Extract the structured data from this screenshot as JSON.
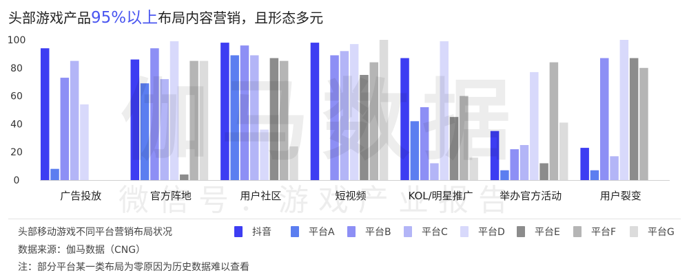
{
  "title": {
    "prefix": "头部游戏产品",
    "highlight": "95%以上",
    "suffix": "布局内容营销，且形态多元"
  },
  "watermark": {
    "main": "伽马数据",
    "sub": "微信号：游戏产业报告"
  },
  "footer": {
    "chart_caption": "头部移动游戏不同平台营销布局状况",
    "source": "数据来源：伽马数据（CNG）",
    "note": "注：部分平台某一类布局为零原因为历史数据难以查看"
  },
  "colors": [
    "#3d3df2",
    "#5b7ef0",
    "#8d8ff5",
    "#b3b5f7",
    "#d8d9fb",
    "#8c8c8c",
    "#b5b5b5",
    "#dcdcdc"
  ],
  "chart_data": {
    "type": "bar",
    "categories": [
      "广告投放",
      "官方阵地",
      "用户社区",
      "短视频",
      "KOL/明星推广",
      "举办官方活动",
      "用户裂变"
    ],
    "yticks": [
      0,
      20,
      40,
      60,
      80,
      100
    ],
    "ylim": [
      0,
      100
    ],
    "legend_position": "bottom",
    "series": [
      {
        "name": "抖音",
        "values": [
          94,
          86,
          98,
          98,
          87,
          35,
          23
        ]
      },
      {
        "name": "平台A",
        "values": [
          8,
          69,
          89,
          0,
          42,
          7,
          7
        ]
      },
      {
        "name": "平台B",
        "values": [
          73,
          94,
          96,
          89,
          52,
          22,
          87
        ]
      },
      {
        "name": "平台C",
        "values": [
          85,
          72,
          89,
          92,
          12,
          25,
          17
        ]
      },
      {
        "name": "平台D",
        "values": [
          54,
          99,
          36,
          97,
          99,
          77,
          100
        ]
      },
      {
        "name": "平台E",
        "values": [
          0,
          4,
          87,
          75,
          45,
          12,
          87
        ]
      },
      {
        "name": "平台F",
        "values": [
          0,
          85,
          85,
          84,
          60,
          84,
          80
        ]
      },
      {
        "name": "平台G",
        "values": [
          0,
          85,
          24,
          100,
          16,
          41,
          0
        ]
      }
    ]
  }
}
